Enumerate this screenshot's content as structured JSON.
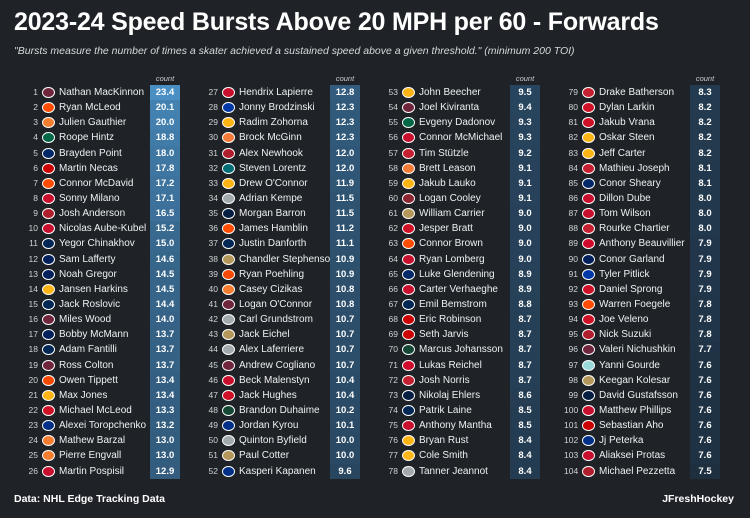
{
  "title": "2023-24 Speed Bursts Above 20 MPH per 60 - Forwards",
  "subtitle": "\"Bursts measure the number of times a skater achieved a sustained speed above a given threshold.\" (minimum 200 TOI)",
  "count_header": "count",
  "footer_source": "Data: NHL Edge Tracking Data",
  "footer_author": "JFreshHockey",
  "colors": {
    "background": "#1f2327",
    "bar_high": "#4a8fc4",
    "bar_low": "#1e2f40",
    "text": "#e8eaec"
  },
  "chart_data": {
    "type": "table",
    "title": "2023-24 Speed Bursts Above 20 MPH per 60 - Forwards",
    "value_label": "count",
    "rows": [
      {
        "rank": 1,
        "player": "Nathan MacKinnon",
        "team": "COL",
        "value": 23.4
      },
      {
        "rank": 2,
        "player": "Ryan McLeod",
        "team": "EDM",
        "value": 20.1
      },
      {
        "rank": 3,
        "player": "Julien Gauthier",
        "team": "NYI",
        "value": 20.0
      },
      {
        "rank": 4,
        "player": "Roope Hintz",
        "team": "DAL",
        "value": 18.8
      },
      {
        "rank": 5,
        "player": "Brayden Point",
        "team": "TBL",
        "value": 18.0
      },
      {
        "rank": 6,
        "player": "Martin Necas",
        "team": "CAR",
        "value": 17.8
      },
      {
        "rank": 7,
        "player": "Connor McDavid",
        "team": "EDM",
        "value": 17.2
      },
      {
        "rank": 8,
        "player": "Sonny Milano",
        "team": "WSH",
        "value": 17.1
      },
      {
        "rank": 9,
        "player": "Josh Anderson",
        "team": "MTL",
        "value": 16.5
      },
      {
        "rank": 10,
        "player": "Nicolas Aube-Kubel",
        "team": "WSH",
        "value": 15.2
      },
      {
        "rank": 11,
        "player": "Yegor Chinakhov",
        "team": "CBJ",
        "value": 15.0
      },
      {
        "rank": 12,
        "player": "Sam Lafferty",
        "team": "VAN",
        "value": 14.6
      },
      {
        "rank": 13,
        "player": "Noah Gregor",
        "team": "TOR",
        "value": 14.5
      },
      {
        "rank": 14,
        "player": "Jansen Harkins",
        "team": "PIT",
        "value": 14.5
      },
      {
        "rank": 15,
        "player": "Jack Roslovic",
        "team": "CBJ",
        "value": 14.4
      },
      {
        "rank": 16,
        "player": "Miles Wood",
        "team": "COL",
        "value": 14.0
      },
      {
        "rank": 17,
        "player": "Bobby McMann",
        "team": "TOR",
        "value": 13.7
      },
      {
        "rank": 18,
        "player": "Adam Fantilli",
        "team": "CBJ",
        "value": 13.7
      },
      {
        "rank": 19,
        "player": "Ross Colton",
        "team": "COL",
        "value": 13.7
      },
      {
        "rank": 20,
        "player": "Owen Tippett",
        "team": "PHI",
        "value": 13.4
      },
      {
        "rank": 21,
        "player": "Max Jones",
        "team": "BOS",
        "value": 13.4
      },
      {
        "rank": 22,
        "player": "Michael McLeod",
        "team": "NJD",
        "value": 13.3
      },
      {
        "rank": 23,
        "player": "Alexei Toropchenko",
        "team": "STL",
        "value": 13.2
      },
      {
        "rank": 24,
        "player": "Mathew Barzal",
        "team": "NYI",
        "value": 13.0
      },
      {
        "rank": 25,
        "player": "Pierre Engvall",
        "team": "NYI",
        "value": 13.0
      },
      {
        "rank": 26,
        "player": "Martin Pospisil",
        "team": "CGY",
        "value": 12.9
      },
      {
        "rank": 27,
        "player": "Hendrix Lapierre",
        "team": "WSH",
        "value": 12.8
      },
      {
        "rank": 28,
        "player": "Jonny Brodzinski",
        "team": "NYR",
        "value": 12.3
      },
      {
        "rank": 29,
        "player": "Radim Zohorna",
        "team": "PIT",
        "value": 12.3
      },
      {
        "rank": 30,
        "player": "Brock McGinn",
        "team": "ANA",
        "value": 12.3
      },
      {
        "rank": 31,
        "player": "Alex Newhook",
        "team": "MTL",
        "value": 12.0
      },
      {
        "rank": 32,
        "player": "Steven Lorentz",
        "team": "SJS",
        "value": 12.0
      },
      {
        "rank": 33,
        "player": "Drew O'Connor",
        "team": "PIT",
        "value": 11.9
      },
      {
        "rank": 34,
        "player": "Adrian Kempe",
        "team": "LAK",
        "value": 11.5
      },
      {
        "rank": 35,
        "player": "Morgan Barron",
        "team": "WPG",
        "value": 11.5
      },
      {
        "rank": 36,
        "player": "James Hamblin",
        "team": "EDM",
        "value": 11.2
      },
      {
        "rank": 37,
        "player": "Justin Danforth",
        "team": "CBJ",
        "value": 11.1
      },
      {
        "rank": 38,
        "player": "Chandler Stephenson",
        "team": "VGK",
        "value": 10.9
      },
      {
        "rank": 39,
        "player": "Ryan Poehling",
        "team": "PHI",
        "value": 10.9
      },
      {
        "rank": 40,
        "player": "Casey Cizikas",
        "team": "NYI",
        "value": 10.8
      },
      {
        "rank": 41,
        "player": "Logan O'Connor",
        "team": "COL",
        "value": 10.8
      },
      {
        "rank": 42,
        "player": "Carl Grundstrom",
        "team": "LAK",
        "value": 10.7
      },
      {
        "rank": 43,
        "player": "Jack Eichel",
        "team": "VGK",
        "value": 10.7
      },
      {
        "rank": 44,
        "player": "Alex Laferriere",
        "team": "LAK",
        "value": 10.7
      },
      {
        "rank": 45,
        "player": "Andrew Cogliano",
        "team": "COL",
        "value": 10.7
      },
      {
        "rank": 46,
        "player": "Beck Malenstyn",
        "team": "WSH",
        "value": 10.4
      },
      {
        "rank": 47,
        "player": "Jack Hughes",
        "team": "NJD",
        "value": 10.4
      },
      {
        "rank": 48,
        "player": "Brandon Duhaime",
        "team": "MIN",
        "value": 10.2
      },
      {
        "rank": 49,
        "player": "Jordan Kyrou",
        "team": "STL",
        "value": 10.1
      },
      {
        "rank": 50,
        "player": "Quinton Byfield",
        "team": "LAK",
        "value": 10.0
      },
      {
        "rank": 51,
        "player": "Paul Cotter",
        "team": "VGK",
        "value": 10.0
      },
      {
        "rank": 52,
        "player": "Kasperi Kapanen",
        "team": "STL",
        "value": 9.6
      },
      {
        "rank": 53,
        "player": "John Beecher",
        "team": "BOS",
        "value": 9.5
      },
      {
        "rank": 54,
        "player": "Joel Kiviranta",
        "team": "COL",
        "value": 9.4
      },
      {
        "rank": 55,
        "player": "Evgeny Dadonov",
        "team": "DAL",
        "value": 9.3
      },
      {
        "rank": 56,
        "player": "Connor McMichael",
        "team": "WSH",
        "value": 9.3
      },
      {
        "rank": 57,
        "player": "Tim Stützle",
        "team": "OTT",
        "value": 9.2
      },
      {
        "rank": 58,
        "player": "Brett Leason",
        "team": "ANA",
        "value": 9.1
      },
      {
        "rank": 59,
        "player": "Jakub Lauko",
        "team": "BOS",
        "value": 9.1
      },
      {
        "rank": 60,
        "player": "Logan Cooley",
        "team": "ARI",
        "value": 9.1
      },
      {
        "rank": 61,
        "player": "William Carrier",
        "team": "VGK",
        "value": 9.0
      },
      {
        "rank": 62,
        "player": "Jesper Bratt",
        "team": "NJD",
        "value": 9.0
      },
      {
        "rank": 63,
        "player": "Connor Brown",
        "team": "EDM",
        "value": 9.0
      },
      {
        "rank": 64,
        "player": "Ryan Lomberg",
        "team": "FLA",
        "value": 9.0
      },
      {
        "rank": 65,
        "player": "Luke Glendening",
        "team": "TBL",
        "value": 8.9
      },
      {
        "rank": 66,
        "player": "Carter Verhaeghe",
        "team": "FLA",
        "value": 8.9
      },
      {
        "rank": 67,
        "player": "Emil Bemstrom",
        "team": "CBJ",
        "value": 8.8
      },
      {
        "rank": 68,
        "player": "Eric Robinson",
        "team": "CAR",
        "value": 8.7
      },
      {
        "rank": 69,
        "player": "Seth Jarvis",
        "team": "CAR",
        "value": 8.7
      },
      {
        "rank": 70,
        "player": "Marcus Johansson",
        "team": "MIN",
        "value": 8.7
      },
      {
        "rank": 71,
        "player": "Lukas Reichel",
        "team": "CHI",
        "value": 8.7
      },
      {
        "rank": 72,
        "player": "Josh Norris",
        "team": "OTT",
        "value": 8.7
      },
      {
        "rank": 73,
        "player": "Nikolaj Ehlers",
        "team": "WPG",
        "value": 8.6
      },
      {
        "rank": 74,
        "player": "Patrik Laine",
        "team": "CBJ",
        "value": 8.5
      },
      {
        "rank": 75,
        "player": "Anthony Mantha",
        "team": "WSH",
        "value": 8.5
      },
      {
        "rank": 76,
        "player": "Bryan Rust",
        "team": "PIT",
        "value": 8.4
      },
      {
        "rank": 77,
        "player": "Cole Smith",
        "team": "NSH",
        "value": 8.4
      },
      {
        "rank": 78,
        "player": "Tanner Jeannot",
        "team": "LAK",
        "value": 8.4
      },
      {
        "rank": 79,
        "player": "Drake Batherson",
        "team": "OTT",
        "value": 8.3
      },
      {
        "rank": 80,
        "player": "Dylan Larkin",
        "team": "DET",
        "value": 8.2
      },
      {
        "rank": 81,
        "player": "Jakub Vrana",
        "team": "DET",
        "value": 8.2
      },
      {
        "rank": 82,
        "player": "Oskar Steen",
        "team": "BOS",
        "value": 8.2
      },
      {
        "rank": 83,
        "player": "Jeff Carter",
        "team": "PIT",
        "value": 8.2
      },
      {
        "rank": 84,
        "player": "Mathieu Joseph",
        "team": "OTT",
        "value": 8.1
      },
      {
        "rank": 85,
        "player": "Conor Sheary",
        "team": "TBL",
        "value": 8.1
      },
      {
        "rank": 86,
        "player": "Dillon Dube",
        "team": "CGY",
        "value": 8.0
      },
      {
        "rank": 87,
        "player": "Tom Wilson",
        "team": "WSH",
        "value": 8.0
      },
      {
        "rank": 88,
        "player": "Rourke Chartier",
        "team": "OTT",
        "value": 8.0
      },
      {
        "rank": 89,
        "player": "Anthony Beauvillier",
        "team": "CHI",
        "value": 7.9
      },
      {
        "rank": 90,
        "player": "Conor Garland",
        "team": "VAN",
        "value": 7.9
      },
      {
        "rank": 91,
        "player": "Tyler Pitlick",
        "team": "NYR",
        "value": 7.9
      },
      {
        "rank": 92,
        "player": "Daniel Sprong",
        "team": "DET",
        "value": 7.9
      },
      {
        "rank": 93,
        "player": "Warren Foegele",
        "team": "EDM",
        "value": 7.8
      },
      {
        "rank": 94,
        "player": "Joe Veleno",
        "team": "DET",
        "value": 7.8
      },
      {
        "rank": 95,
        "player": "Nick Suzuki",
        "team": "MTL",
        "value": 7.8
      },
      {
        "rank": 96,
        "player": "Valeri Nichushkin",
        "team": "COL",
        "value": 7.7
      },
      {
        "rank": 97,
        "player": "Yanni Gourde",
        "team": "SEA",
        "value": 7.6
      },
      {
        "rank": 98,
        "player": "Keegan Kolesar",
        "team": "VGK",
        "value": 7.6
      },
      {
        "rank": 99,
        "player": "David Gustafsson",
        "team": "WPG",
        "value": 7.6
      },
      {
        "rank": 100,
        "player": "Matthew Phillips",
        "team": "CGY",
        "value": 7.6
      },
      {
        "rank": 101,
        "player": "Sebastian Aho",
        "team": "CAR",
        "value": 7.6
      },
      {
        "rank": 102,
        "player": "Jj Peterka",
        "team": "BUF",
        "value": 7.6
      },
      {
        "rank": 103,
        "player": "Aliaksei Protas",
        "team": "WSH",
        "value": 7.6
      },
      {
        "rank": 104,
        "player": "Michael Pezzetta",
        "team": "MTL",
        "value": 7.5
      }
    ],
    "column_groups": 4,
    "rows_per_column": 26
  },
  "team_colors": {
    "COL": "#6f263d",
    "EDM": "#ff4c00",
    "NYI": "#f47d30",
    "DAL": "#006847",
    "TBL": "#002868",
    "CAR": "#cc0000",
    "WSH": "#c8102e",
    "MTL": "#af1e2d",
    "CBJ": "#002654",
    "VAN": "#00205b",
    "TOR": "#00205b",
    "PIT": "#fcb514",
    "PHI": "#f74902",
    "BOS": "#fcb514",
    "NJD": "#ce1126",
    "STL": "#002f87",
    "CGY": "#c8102e",
    "NYR": "#0038a8",
    "ANA": "#f47a38",
    "SJS": "#006d75",
    "LAK": "#a2aaad",
    "WPG": "#041e42",
    "VGK": "#b4975a",
    "MIN": "#154734",
    "OTT": "#c52032",
    "ARI": "#8c2633",
    "FLA": "#c8102e",
    "CHI": "#cf0a2c",
    "NSH": "#ffb81c",
    "DET": "#ce1126",
    "SEA": "#99d9d9",
    "BUF": "#003087"
  }
}
